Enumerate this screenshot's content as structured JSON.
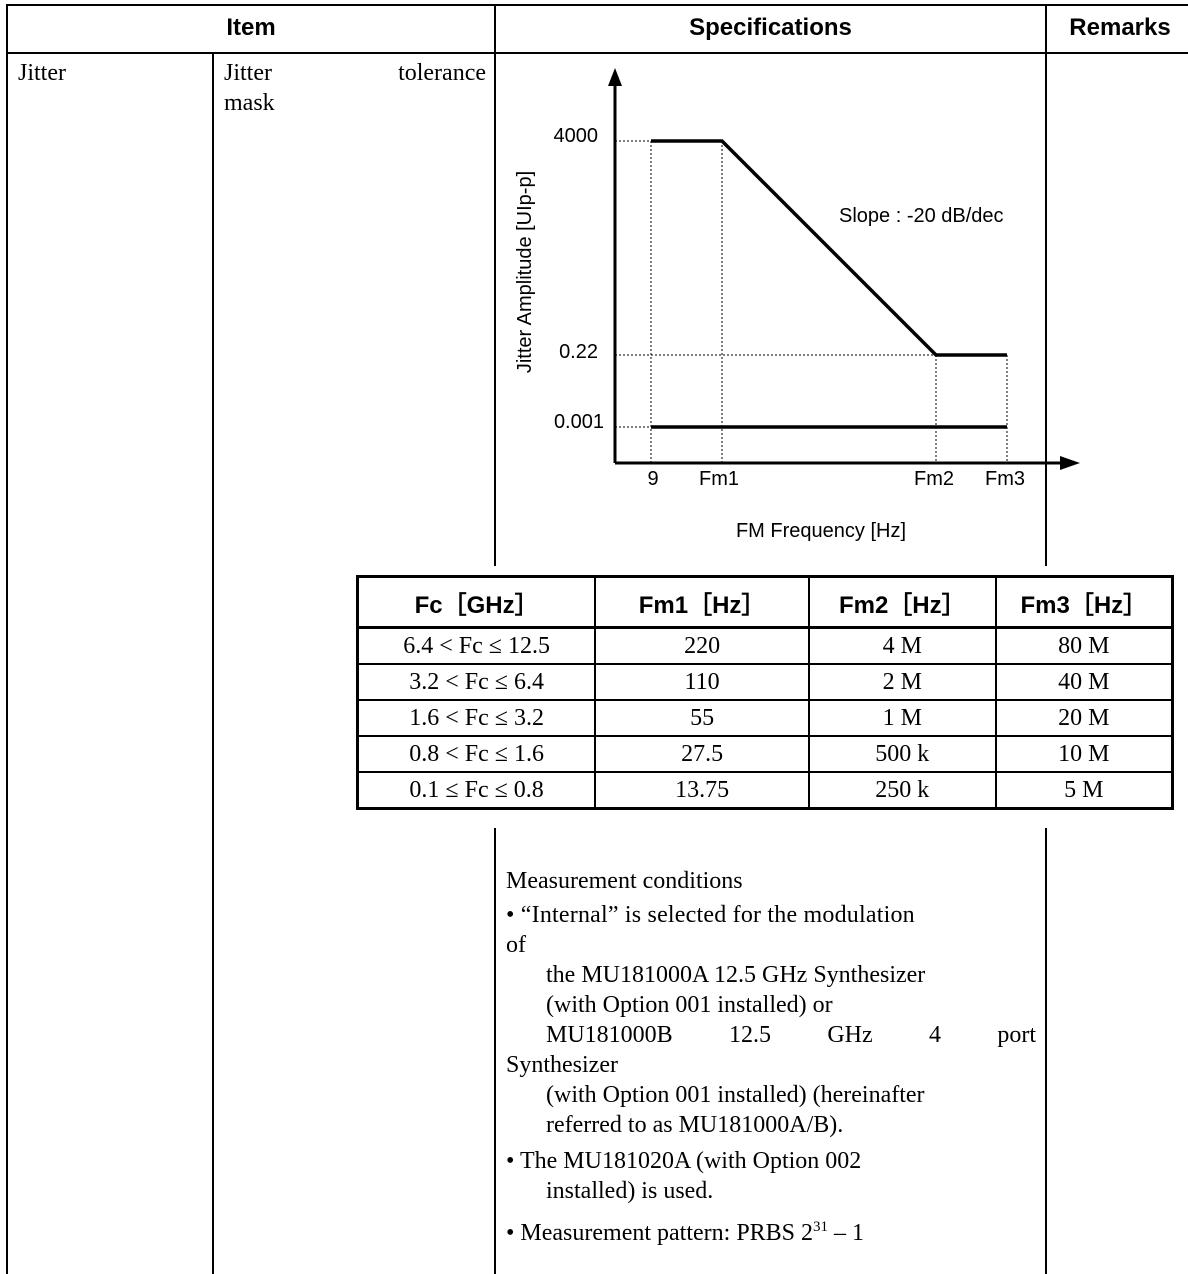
{
  "header": {
    "item": "Item",
    "specifications": "Specifications",
    "remarks": "Remarks"
  },
  "row": {
    "item_main": "Jitter",
    "item_sub_line1_a": "Jitter",
    "item_sub_line1_b": "tolerance",
    "item_sub_line2": "mask"
  },
  "chart_data": {
    "type": "line",
    "ylabel": "Jitter Amplitude [UIp-p]",
    "xlabel": "FM Frequency [Hz]",
    "y_ticks": [
      "4000",
      "0.22",
      "0.001"
    ],
    "x_ticks": [
      "9",
      "Fm1",
      "Fm2",
      "Fm3"
    ],
    "annotation": "Slope : -20 dB/dec",
    "series": [
      {
        "points": [
          [
            "9",
            "4000"
          ],
          [
            "Fm1",
            "4000"
          ],
          [
            "Fm2",
            "0.22"
          ],
          [
            "Fm3",
            "0.22"
          ]
        ]
      },
      {
        "points": [
          [
            "9",
            "0.001"
          ],
          [
            "Fm3",
            "0.001"
          ]
        ]
      }
    ]
  },
  "fm_table": {
    "headers": [
      "Fc［GHz］",
      "Fm1［Hz］",
      "Fm2［Hz］",
      "Fm3［Hz］"
    ],
    "rows": [
      [
        "6.4 < Fc ≤ 12.5",
        "220",
        "4 M",
        "80 M"
      ],
      [
        "3.2 < Fc ≤ 6.4",
        "110",
        "2 M",
        "40 M"
      ],
      [
        "1.6 < Fc ≤ 3.2",
        "55",
        "1 M",
        "20 M"
      ],
      [
        "0.8 < Fc ≤ 1.6",
        "27.5",
        "500 k",
        "10 M"
      ],
      [
        "0.1 ≤ Fc ≤ 0.8",
        "13.75",
        "250 k",
        "5 M"
      ]
    ]
  },
  "notes": {
    "title": "Measurement conditions",
    "b1_line1": "• “Internal” is selected for the modulation",
    "b1_line2": "of",
    "b1_line3": "the MU181000A 12.5 GHz Synthesizer",
    "b1_line4": "(with Option 001 installed) or",
    "b1_line5": "MU181000B 12.5 GHz 4 port",
    "b1_line6": "Synthesizer",
    "b1_line7": "(with Option 001 installed) (hereinafter",
    "b1_line8": "referred to as MU181000A/B).",
    "b2_line1": "• The MU181020A (with Option 002",
    "b2_line2": "installed) is used.",
    "b3_prefix": "• Measurement pattern: PRBS 2",
    "b3_sup": "31",
    "b3_suffix": " – 1"
  }
}
